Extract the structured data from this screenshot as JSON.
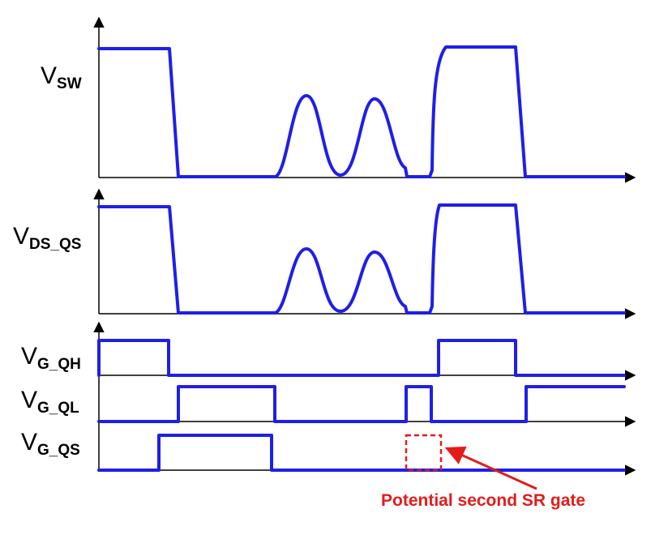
{
  "signals": [
    {
      "id": "vsw",
      "main": "V",
      "sub": "SW",
      "color": "#1f1fe6"
    },
    {
      "id": "vds_qs",
      "main": "V",
      "sub": "DS_QS",
      "color": "#1f1fe6"
    },
    {
      "id": "vg_qh",
      "main": "V",
      "sub": "G_QH",
      "color": "#1f1fe6"
    },
    {
      "id": "vg_ql",
      "main": "V",
      "sub": "G_QL",
      "color": "#1f1fe6"
    },
    {
      "id": "vg_qs",
      "main": "V",
      "sub": "G_QS",
      "color": "#1f1fe6"
    }
  ],
  "annotation": {
    "text": "Potential second SR gate",
    "color": "#e41b1b"
  },
  "colors": {
    "waveform": "#1f1fe6",
    "axis": "#000000",
    "annotation": "#e41b1b"
  }
}
